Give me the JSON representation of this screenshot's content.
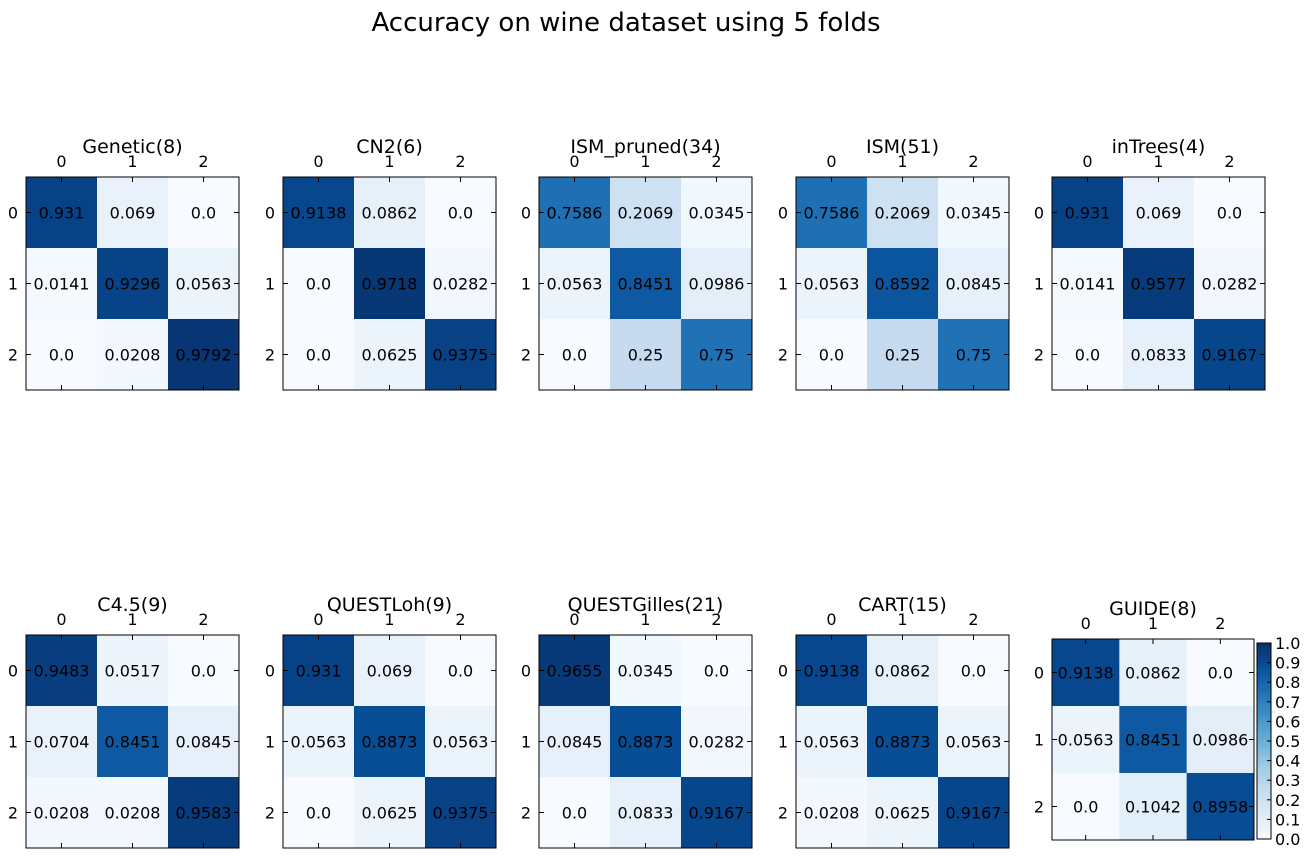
{
  "suptitle": "Accuracy on wine dataset using 5 folds",
  "colormap": {
    "name": "Blues",
    "min": 0.0,
    "max": 1.0,
    "stops": [
      "#f7fbff",
      "#deebf7",
      "#c6dbef",
      "#9ecae1",
      "#6baed6",
      "#4292c6",
      "#2171b5",
      "#08519c",
      "#08306b"
    ]
  },
  "colorbar": {
    "ticks": [
      "0.0",
      "0.1",
      "0.2",
      "0.3",
      "0.4",
      "0.5",
      "0.6",
      "0.7",
      "0.8",
      "0.9",
      "1.0"
    ]
  },
  "chart_data": [
    {
      "type": "heatmap",
      "title": "Genetic(8)",
      "x_ticks": [
        "0",
        "1",
        "2"
      ],
      "y_ticks": [
        "0",
        "1",
        "2"
      ],
      "values": [
        [
          0.931,
          0.069,
          0.0
        ],
        [
          0.0141,
          0.9296,
          0.0563
        ],
        [
          0.0,
          0.0208,
          0.9792
        ]
      ],
      "labels": [
        [
          "0.931",
          "0.069",
          "0.0"
        ],
        [
          "0.0141",
          "0.9296",
          "0.0563"
        ],
        [
          "0.0",
          "0.0208",
          "0.9792"
        ]
      ]
    },
    {
      "type": "heatmap",
      "title": "CN2(6)",
      "x_ticks": [
        "0",
        "1",
        "2"
      ],
      "y_ticks": [
        "0",
        "1",
        "2"
      ],
      "values": [
        [
          0.9138,
          0.0862,
          0.0
        ],
        [
          0.0,
          0.9718,
          0.0282
        ],
        [
          0.0,
          0.0625,
          0.9375
        ]
      ],
      "labels": [
        [
          "0.9138",
          "0.0862",
          "0.0"
        ],
        [
          "0.0",
          "0.9718",
          "0.0282"
        ],
        [
          "0.0",
          "0.0625",
          "0.9375"
        ]
      ]
    },
    {
      "type": "heatmap",
      "title": "ISM_pruned(34)",
      "x_ticks": [
        "0",
        "1",
        "2"
      ],
      "y_ticks": [
        "0",
        "1",
        "2"
      ],
      "values": [
        [
          0.7586,
          0.2069,
          0.0345
        ],
        [
          0.0563,
          0.8451,
          0.0986
        ],
        [
          0.0,
          0.25,
          0.75
        ]
      ],
      "labels": [
        [
          "0.7586",
          "0.2069",
          "0.0345"
        ],
        [
          "0.0563",
          "0.8451",
          "0.0986"
        ],
        [
          "0.0",
          "0.25",
          "0.75"
        ]
      ]
    },
    {
      "type": "heatmap",
      "title": "ISM(51)",
      "x_ticks": [
        "0",
        "1",
        "2"
      ],
      "y_ticks": [
        "0",
        "1",
        "2"
      ],
      "values": [
        [
          0.7586,
          0.2069,
          0.0345
        ],
        [
          0.0563,
          0.8592,
          0.0845
        ],
        [
          0.0,
          0.25,
          0.75
        ]
      ],
      "labels": [
        [
          "0.7586",
          "0.2069",
          "0.0345"
        ],
        [
          "0.0563",
          "0.8592",
          "0.0845"
        ],
        [
          "0.0",
          "0.25",
          "0.75"
        ]
      ]
    },
    {
      "type": "heatmap",
      "title": "inTrees(4)",
      "x_ticks": [
        "0",
        "1",
        "2"
      ],
      "y_ticks": [
        "0",
        "1",
        "2"
      ],
      "values": [
        [
          0.931,
          0.069,
          0.0
        ],
        [
          0.0141,
          0.9577,
          0.0282
        ],
        [
          0.0,
          0.0833,
          0.9167
        ]
      ],
      "labels": [
        [
          "0.931",
          "0.069",
          "0.0"
        ],
        [
          "0.0141",
          "0.9577",
          "0.0282"
        ],
        [
          "0.0",
          "0.0833",
          "0.9167"
        ]
      ]
    },
    {
      "type": "heatmap",
      "title": "C4.5(9)",
      "x_ticks": [
        "0",
        "1",
        "2"
      ],
      "y_ticks": [
        "0",
        "1",
        "2"
      ],
      "values": [
        [
          0.9483,
          0.0517,
          0.0
        ],
        [
          0.0704,
          0.8451,
          0.0845
        ],
        [
          0.0208,
          0.0208,
          0.9583
        ]
      ],
      "labels": [
        [
          "0.9483",
          "0.0517",
          "0.0"
        ],
        [
          "0.0704",
          "0.8451",
          "0.0845"
        ],
        [
          "0.0208",
          "0.0208",
          "0.9583"
        ]
      ]
    },
    {
      "type": "heatmap",
      "title": "QUESTLoh(9)",
      "x_ticks": [
        "0",
        "1",
        "2"
      ],
      "y_ticks": [
        "0",
        "1",
        "2"
      ],
      "values": [
        [
          0.931,
          0.069,
          0.0
        ],
        [
          0.0563,
          0.8873,
          0.0563
        ],
        [
          0.0,
          0.0625,
          0.9375
        ]
      ],
      "labels": [
        [
          "0.931",
          "0.069",
          "0.0"
        ],
        [
          "0.0563",
          "0.8873",
          "0.0563"
        ],
        [
          "0.0",
          "0.0625",
          "0.9375"
        ]
      ]
    },
    {
      "type": "heatmap",
      "title": "QUESTGilles(21)",
      "x_ticks": [
        "0",
        "1",
        "2"
      ],
      "y_ticks": [
        "0",
        "1",
        "2"
      ],
      "values": [
        [
          0.9655,
          0.0345,
          0.0
        ],
        [
          0.0845,
          0.8873,
          0.0282
        ],
        [
          0.0,
          0.0833,
          0.9167
        ]
      ],
      "labels": [
        [
          "0.9655",
          "0.0345",
          "0.0"
        ],
        [
          "0.0845",
          "0.8873",
          "0.0282"
        ],
        [
          "0.0",
          "0.0833",
          "0.9167"
        ]
      ]
    },
    {
      "type": "heatmap",
      "title": "CART(15)",
      "x_ticks": [
        "0",
        "1",
        "2"
      ],
      "y_ticks": [
        "0",
        "1",
        "2"
      ],
      "values": [
        [
          0.9138,
          0.0862,
          0.0
        ],
        [
          0.0563,
          0.8873,
          0.0563
        ],
        [
          0.0208,
          0.0625,
          0.9167
        ]
      ],
      "labels": [
        [
          "0.9138",
          "0.0862",
          "0.0"
        ],
        [
          "0.0563",
          "0.8873",
          "0.0563"
        ],
        [
          "0.0208",
          "0.0625",
          "0.9167"
        ]
      ]
    },
    {
      "type": "heatmap",
      "title": "GUIDE(8)",
      "x_ticks": [
        "0",
        "1",
        "2"
      ],
      "y_ticks": [
        "0",
        "1",
        "2"
      ],
      "values": [
        [
          0.9138,
          0.0862,
          0.0
        ],
        [
          0.0563,
          0.8451,
          0.0986
        ],
        [
          0.0,
          0.1042,
          0.8958
        ]
      ],
      "labels": [
        [
          "0.9138",
          "0.0862",
          "0.0"
        ],
        [
          "0.0563",
          "0.8451",
          "0.0986"
        ],
        [
          "0.0",
          "0.1042",
          "0.8958"
        ]
      ]
    }
  ]
}
